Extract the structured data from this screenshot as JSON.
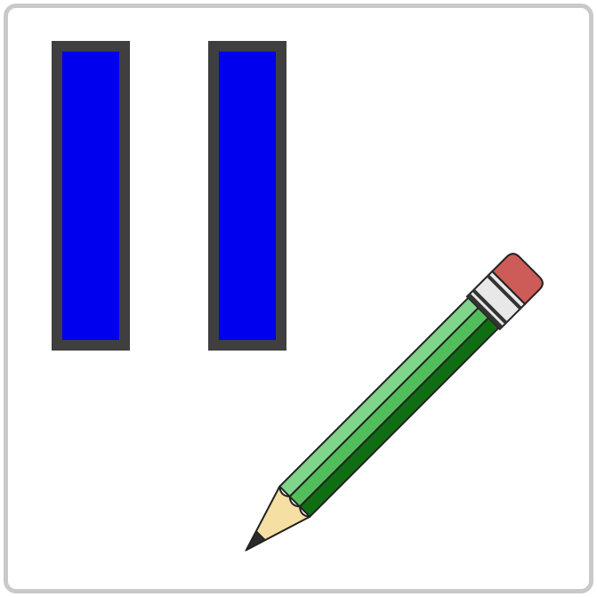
{
  "icon": {
    "name": "pause-and-edit-icon",
    "frame_color": "#c8cac9",
    "bar_fill_color": "#0000ee",
    "bar_border_color": "#3f3f3f",
    "pencil": {
      "eraser_color": "#cd5b57",
      "ferrule_color": "#e8e8e8",
      "body_light_color": "#7fd58a",
      "body_mid_color": "#52be5b",
      "body_dark_color": "#0f6e12",
      "wood_color": "#f6dfa2",
      "lead_color": "#2a2a2a"
    }
  }
}
